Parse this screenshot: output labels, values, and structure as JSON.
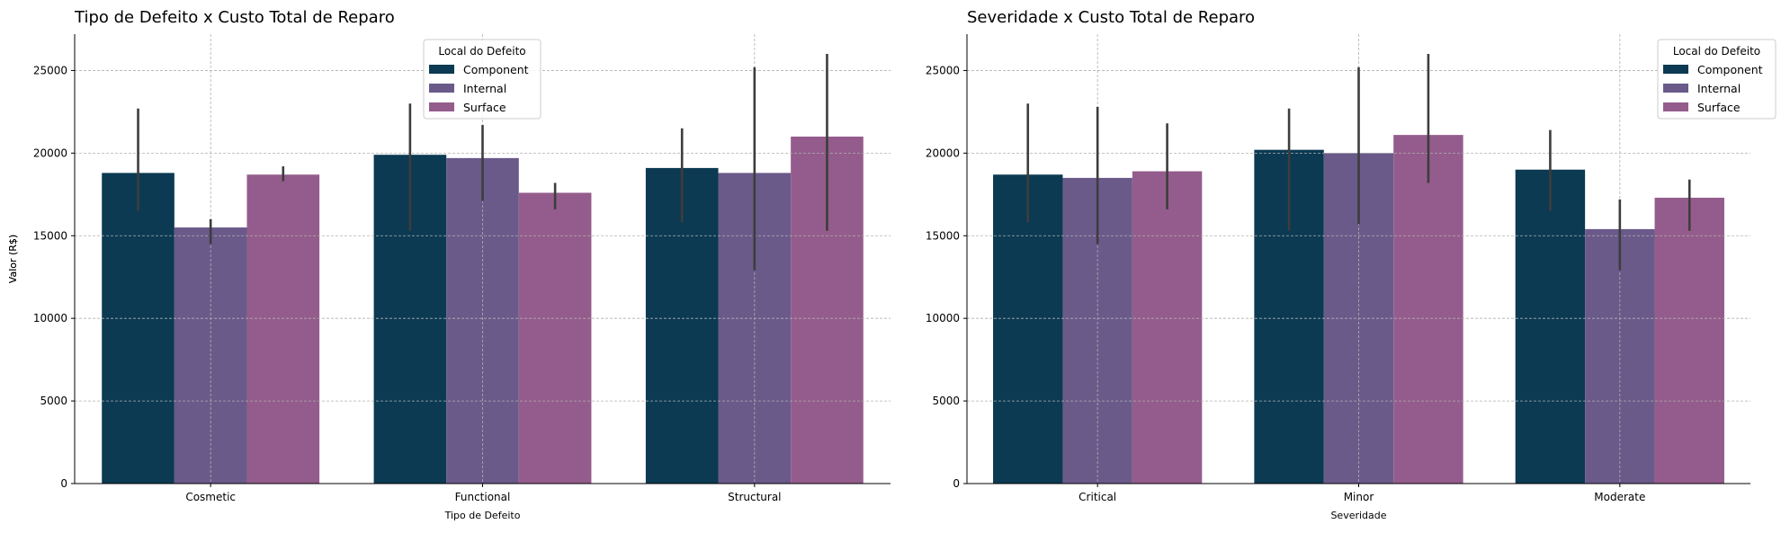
{
  "colors": {
    "component": "#0b3a52",
    "internal": "#6a5a8a",
    "surface": "#945c8c",
    "error_bar": "#3d3d3d",
    "grid": "#b0b0b0"
  },
  "chart_data": [
    {
      "type": "bar",
      "title": "Tipo de Defeito x Custo Total de Reparo",
      "xlabel": "Tipo de Defeito",
      "ylabel": "Valor (R$)",
      "ylim": [
        0,
        27200
      ],
      "yticks": [
        "0",
        "5000",
        "10000",
        "15000",
        "20000",
        "25000"
      ],
      "categories": [
        "Cosmetic",
        "Functional",
        "Structural"
      ],
      "legend_title": "Local do Defeito",
      "legend_position": "top-center",
      "grid": true,
      "series": [
        {
          "name": "Component",
          "color_key": "component",
          "values": [
            18800,
            19900,
            19100
          ],
          "ci": [
            [
              16500,
              22700
            ],
            [
              15300,
              23000
            ],
            [
              15800,
              21500
            ]
          ]
        },
        {
          "name": "Internal",
          "color_key": "internal",
          "values": [
            15500,
            19700,
            18800
          ],
          "ci": [
            [
              14500,
              16000
            ],
            [
              17100,
              21700
            ],
            [
              12900,
              25200
            ]
          ]
        },
        {
          "name": "Surface",
          "color_key": "surface",
          "values": [
            18700,
            17600,
            21000
          ],
          "ci": [
            [
              18300,
              19200
            ],
            [
              16600,
              18200
            ],
            [
              15300,
              26000
            ]
          ]
        }
      ]
    },
    {
      "type": "bar",
      "title": "Severidade x Custo Total de Reparo",
      "xlabel": "Severidade",
      "ylabel": "Valor (R$)",
      "ylim": [
        0,
        27200
      ],
      "yticks": [
        "0",
        "5000",
        "10000",
        "15000",
        "20000",
        "25000"
      ],
      "categories": [
        "Critical",
        "Minor",
        "Moderate"
      ],
      "legend_title": "Local do Defeito",
      "legend_position": "top-right",
      "grid": true,
      "series": [
        {
          "name": "Component",
          "color_key": "component",
          "values": [
            18700,
            20200,
            19000
          ],
          "ci": [
            [
              15800,
              23000
            ],
            [
              15300,
              22700
            ],
            [
              16500,
              21400
            ]
          ]
        },
        {
          "name": "Internal",
          "color_key": "internal",
          "values": [
            18500,
            20000,
            15400
          ],
          "ci": [
            [
              14500,
              22800
            ],
            [
              15700,
              25200
            ],
            [
              12900,
              17200
            ]
          ]
        },
        {
          "name": "Surface",
          "color_key": "surface",
          "values": [
            18900,
            21100,
            17300
          ],
          "ci": [
            [
              16600,
              21800
            ],
            [
              18200,
              26000
            ],
            [
              15300,
              18400
            ]
          ]
        }
      ]
    }
  ]
}
